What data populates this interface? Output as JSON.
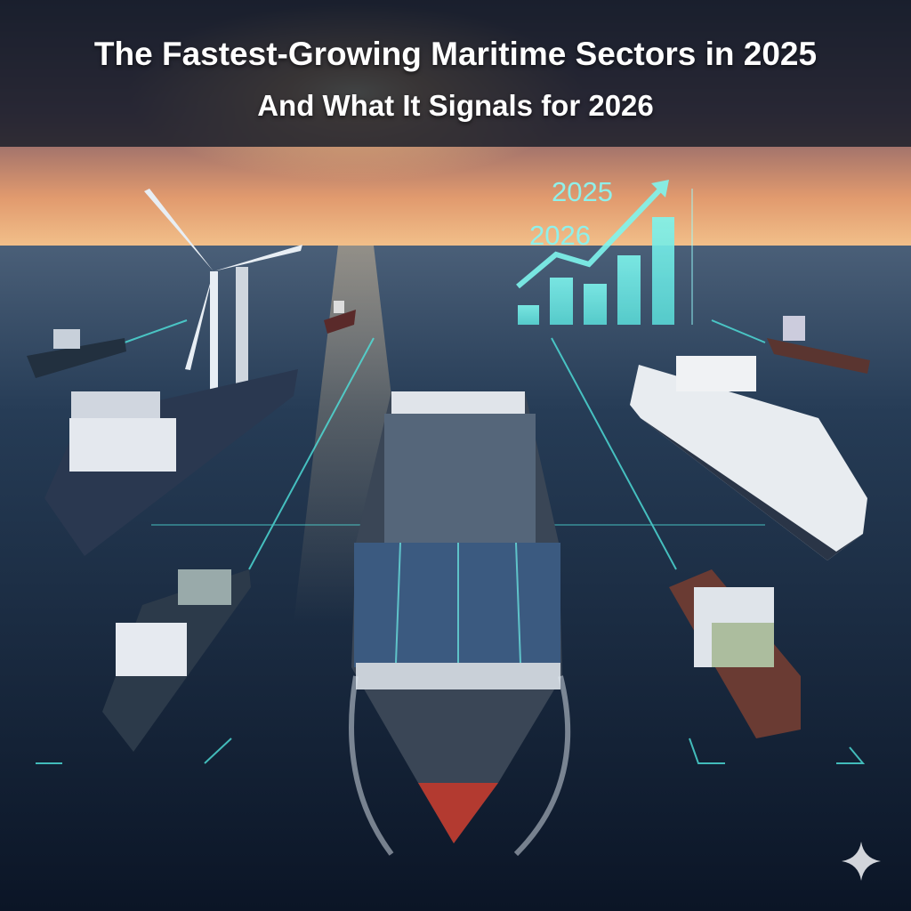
{
  "header": {
    "title": "The Fastest-Growing Maritime Sectors in 2025",
    "subtitle": "And What It Signals for 2026"
  },
  "overlay_chart": {
    "labels": [
      "2025",
      "2026"
    ],
    "color": "#6ff0e8"
  },
  "colors": {
    "sky_top": "#3a3a55",
    "sun": "#ffd79a",
    "sea": "#14283f",
    "accent": "#4fe3dc"
  },
  "icons": {
    "watermark": "sparkle-icon"
  }
}
